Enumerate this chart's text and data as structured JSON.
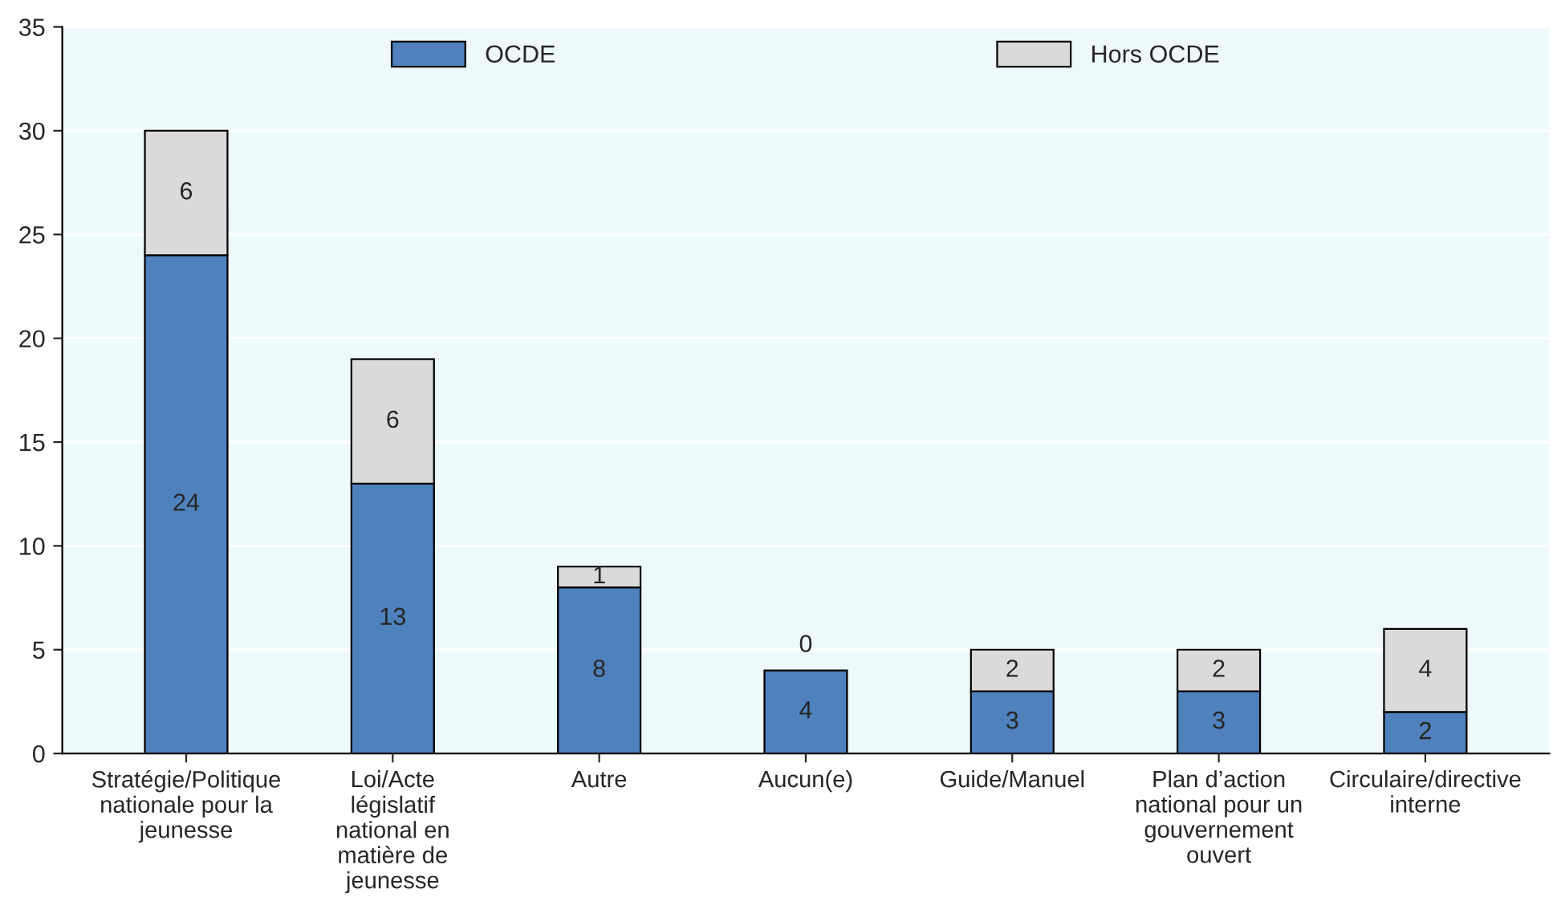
{
  "chart_data": {
    "type": "bar",
    "stacked": true,
    "categories": [
      "Stratégie/Politique nationale pour la jeunesse",
      "Loi/Acte législatif national en matière de jeunesse",
      "Autre",
      "Aucun(e)",
      "Guide/Manuel",
      "Plan d’action national pour un gouvernement ouvert",
      "Circulaire/directive interne"
    ],
    "series": [
      {
        "name": "OCDE",
        "color": "#4f81bd",
        "values": [
          24,
          13,
          8,
          4,
          3,
          3,
          2
        ]
      },
      {
        "name": "Hors OCDE",
        "color": "#dadada",
        "values": [
          6,
          6,
          1,
          0,
          2,
          2,
          4
        ]
      }
    ],
    "ylim": [
      0,
      35
    ],
    "yticks": [
      0,
      5,
      10,
      15,
      20,
      25,
      30,
      35
    ],
    "grid": "y",
    "legend": "top",
    "data_labels": true
  }
}
